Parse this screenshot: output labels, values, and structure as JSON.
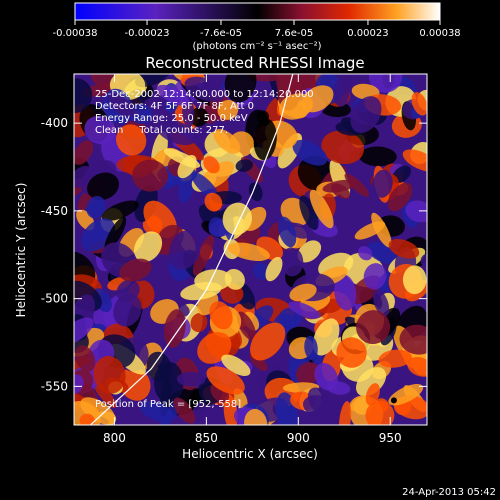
{
  "chart_data": {
    "type": "heatmap",
    "title": "Reconstructed RHESSI Image",
    "xlabel": "Heliocentric X (arcsec)",
    "ylabel": "Heliocentric Y (arcsec)",
    "xlim": [
      778,
      970
    ],
    "ylim": [
      -572,
      -372
    ],
    "xticks": [
      800,
      850,
      900,
      950
    ],
    "yticks": [
      -400,
      -450,
      -500,
      -550
    ],
    "colorbar": {
      "min": -0.00038,
      "max": 0.00038,
      "ticks": [
        -0.00038,
        -0.00023,
        -7.6e-05,
        7.6e-05,
        0.00023,
        0.00038
      ],
      "tick_labels": [
        "-0.00038",
        "-0.00023",
        "-7.6e-05",
        "7.6e-05",
        "0.00023",
        "0.00038"
      ],
      "units_label": "(photons cm⁻² s⁻¹ asec⁻²)",
      "colors": [
        "#0000ff",
        "#4a1aa8",
        "#000000",
        "#7a1a3a",
        "#c02000",
        "#ff6000",
        "#ffc040",
        "#ffffff"
      ]
    },
    "annotations": {
      "time_range": "25-Dec-2002 12:14:00.000 to 12:14:20.000",
      "detectors": "Detectors: 4F 5F 6F 7F 8F, Att 0",
      "energy_range": "Energy Range: 25.0 - 50.0 keV",
      "method_counts": "Clean     Total counts: 277.",
      "peak": "Position of Peak = [952,-558]"
    },
    "limb_curve": [
      [
        787,
        -572
      ],
      [
        820,
        -540
      ],
      [
        850,
        -495
      ],
      [
        875,
        -440
      ],
      [
        890,
        -400
      ],
      [
        897,
        -372
      ]
    ],
    "peak_position": [
      952,
      -558
    ],
    "grid": false,
    "legend": "none"
  },
  "footer": {
    "date": "24-Apr-2013 05:42"
  }
}
